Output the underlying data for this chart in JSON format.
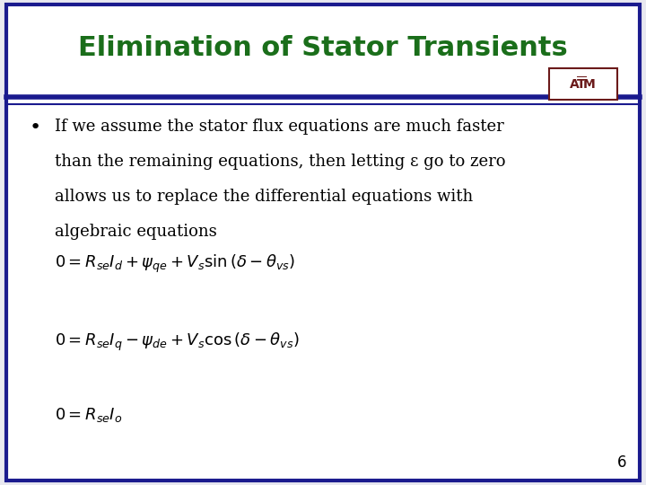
{
  "title": "Elimination of Stator Transients",
  "title_color": "#1a6e1a",
  "title_fontsize": 22,
  "background_color": "#ffffff",
  "outer_border_color": "#1a1a8e",
  "divider_color": "#1a1a8e",
  "bullet_text_lines": [
    "If we assume the stator flux equations are much faster",
    "than the remaining equations, then letting ε go to zero",
    "allows us to replace the differential equations with",
    "algebraic equations"
  ],
  "eq1": "$0 = R_{se}I_d +\\psi_{qe} +V_s \\sin\\left(\\delta - \\theta_{vs}\\right)$",
  "eq2": "$0 = R_{se}I_q -\\psi_{de} +V_s \\cos\\left(\\delta - \\theta_{vs}\\right)$",
  "eq3": "$0 = R_{se}I_o$",
  "eq_fontsize": 13,
  "bullet_fontsize": 13,
  "page_number": "6",
  "tamu_color": "#6b1a1a",
  "slide_bg": "#e8e8f0"
}
